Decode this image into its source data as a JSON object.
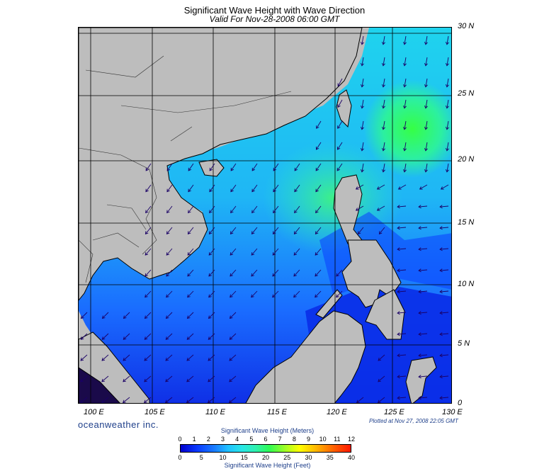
{
  "title": "Significant Wave Height with Wave Direction",
  "subtitle": "Valid For Nov-28-2008 06:00 GMT",
  "lat_labels": [
    "30 N",
    "25 N",
    "20 N",
    "15 N",
    "10 N",
    "5 N",
    "0"
  ],
  "lon_labels": [
    "100 E",
    "105 E",
    "110 E",
    "115 E",
    "120 E",
    "125 E",
    "130 E"
  ],
  "brand": "oceanweather inc.",
  "plotted": "Plotted at Nov 27, 2008 22:05 GMT",
  "colorbar": {
    "meters_title": "Significant Wave Height (Meters)",
    "feet_title": "Significant Wave Height (Feet)",
    "meters_ticks": [
      "0",
      "1",
      "2",
      "3",
      "4",
      "5",
      "6",
      "7",
      "8",
      "9",
      "10",
      "11",
      "12"
    ],
    "feet_ticks": [
      "0",
      "5",
      "10",
      "15",
      "20",
      "25",
      "30",
      "35",
      "40"
    ]
  },
  "colors": {
    "land": "#bdbdbd",
    "frame": "#000000",
    "arrow": "#1a0066",
    "wave_low": "#0000cd",
    "wave_mid": "#1fc1ff",
    "wave_high": "#2dfa55"
  }
}
